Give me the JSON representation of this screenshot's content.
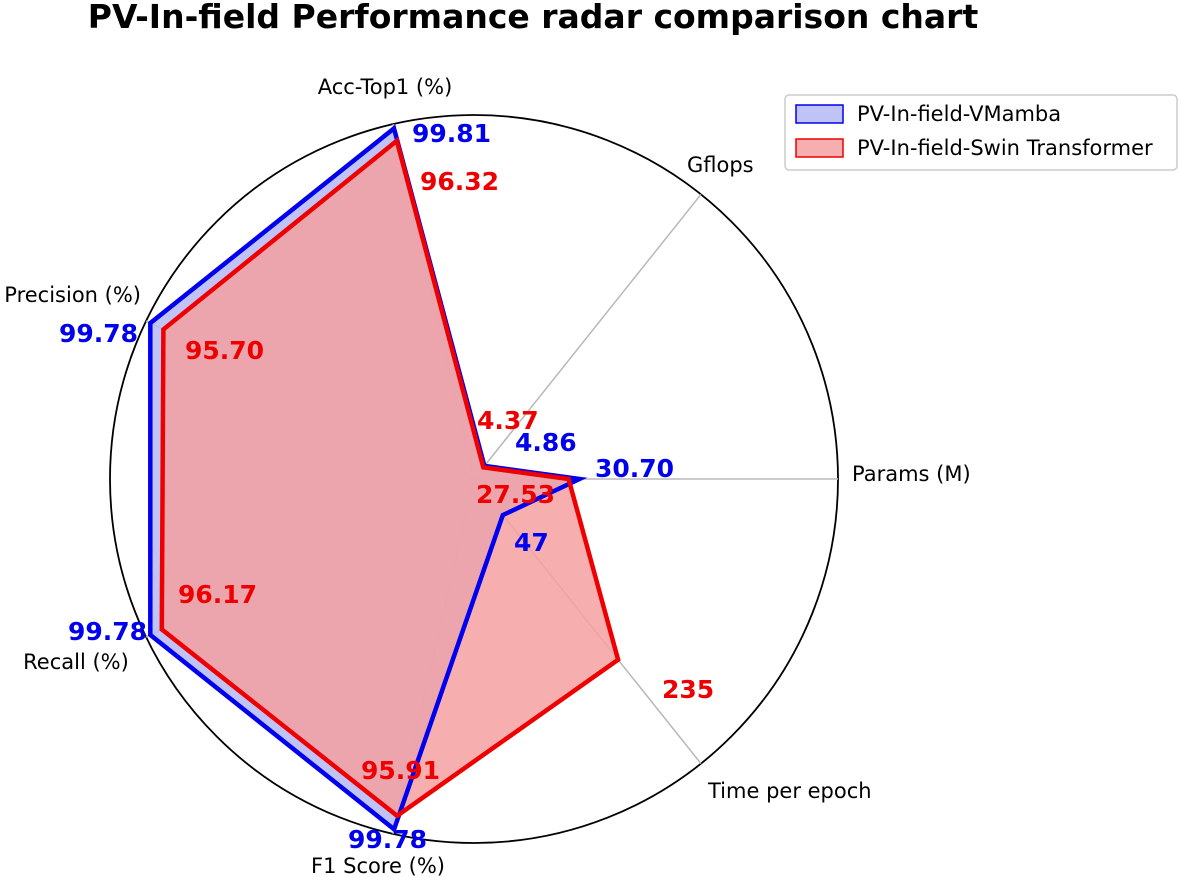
{
  "chart_data": {
    "type": "radar",
    "title": "PV-In-field Performance radar comparison chart",
    "axes": [
      "Params (M)",
      "Gflops",
      "Acc-Top1 (%)",
      "Precision (%)",
      "Recall (%)",
      "F1 Score (%)",
      "Time per epoch"
    ],
    "legend_position": "top-right",
    "grid": true,
    "series": [
      {
        "name": "PV-In-field-VMamba",
        "color": "#0000ee",
        "fill": "#b4b8f4",
        "values": [
          30.7,
          4.86,
          99.81,
          99.78,
          99.78,
          99.78,
          47
        ],
        "labels": [
          "30.70",
          "4.86",
          "99.81",
          "99.78",
          "99.78",
          "99.78",
          "47"
        ],
        "normalized": [
          0.29,
          0.046,
          0.988,
          0.987,
          0.987,
          0.987,
          0.127
        ]
      },
      {
        "name": "PV-In-field-Swin Transformer",
        "color": "#ee0000",
        "fill": "#f4a0a0",
        "values": [
          27.53,
          4.37,
          96.32,
          95.7,
          96.17,
          95.91,
          235
        ],
        "labels": [
          "27.53",
          "4.37",
          "96.32",
          "95.70",
          "96.17",
          "95.91",
          "235"
        ],
        "normalized": [
          0.26,
          0.041,
          0.953,
          0.947,
          0.952,
          0.949,
          0.635
        ]
      }
    ]
  }
}
